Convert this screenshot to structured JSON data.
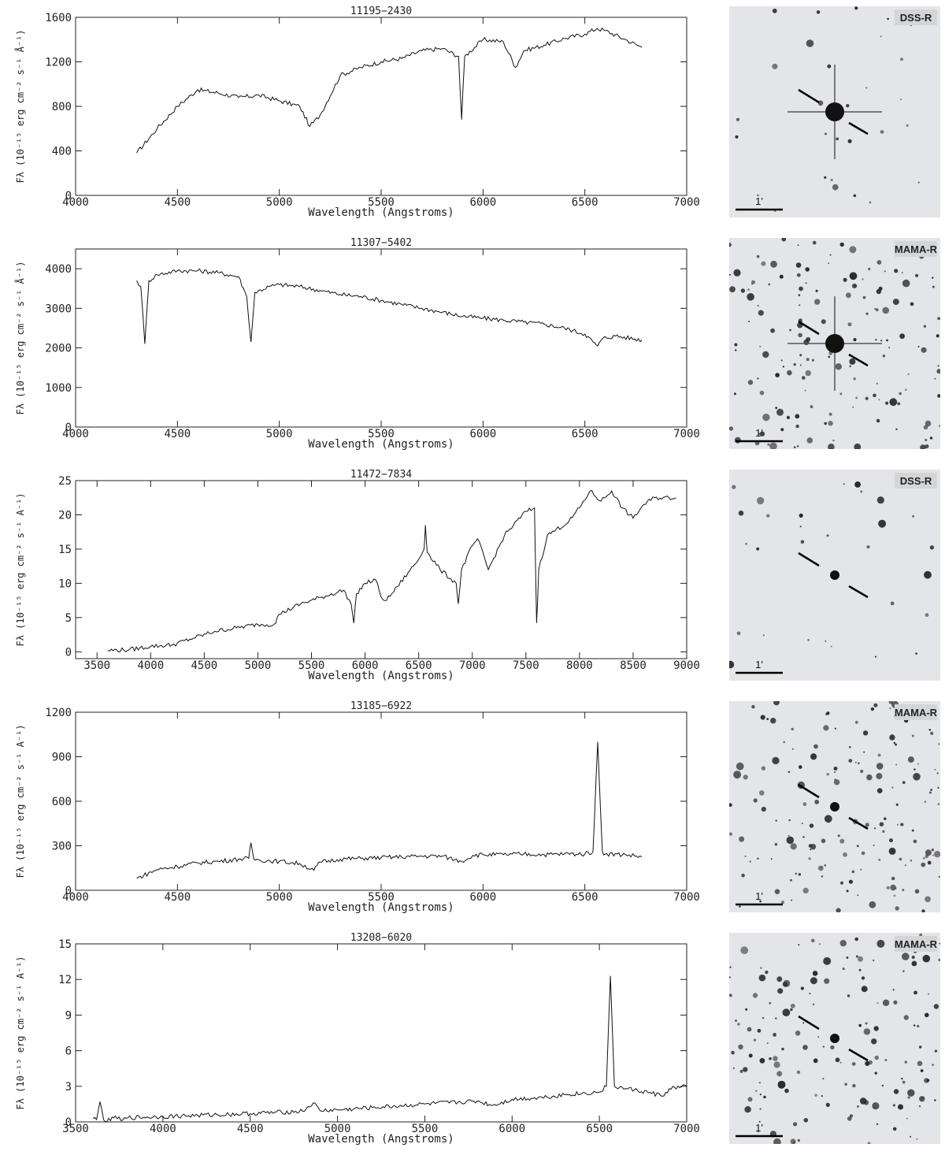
{
  "chart_data": [
    {
      "type": "line",
      "title": "11195−2430",
      "xlabel": "Wavelength (Angstroms)",
      "ylabel": "Fλ (10⁻¹⁵ erg cm⁻² s⁻¹ Å⁻¹)",
      "xlim": [
        4000,
        7000
      ],
      "ylim": [
        0,
        1600
      ],
      "xticks": [
        4000,
        4500,
        5000,
        5500,
        6000,
        6500,
        7000
      ],
      "yticks": [
        0,
        400,
        800,
        1200,
        1600
      ],
      "series": [
        {
          "x": [
            4300,
            4400,
            4500,
            4600,
            4700,
            4800,
            4900,
            5000,
            5100,
            5150,
            5200,
            5300,
            5400,
            5500,
            5600,
            5700,
            5800,
            5880,
            5895,
            5910,
            6000,
            6100,
            6160,
            6200,
            6300,
            6400,
            6500,
            6560,
            6600,
            6700,
            6780
          ],
          "y": [
            380,
            600,
            800,
            950,
            920,
            880,
            900,
            850,
            800,
            620,
            720,
            1080,
            1150,
            1200,
            1230,
            1300,
            1320,
            1250,
            680,
            1250,
            1400,
            1380,
            1150,
            1300,
            1350,
            1410,
            1450,
            1500,
            1480,
            1400,
            1330
          ]
        }
      ],
      "finder": {
        "survey": "DSS-R",
        "scale_label": "1'"
      }
    },
    {
      "type": "line",
      "title": "11307−5402",
      "xlabel": "Wavelength (Angstroms)",
      "ylabel": "Fλ (10⁻¹⁵ erg cm⁻² s⁻¹ Å⁻¹)",
      "xlim": [
        4000,
        7000
      ],
      "ylim": [
        0,
        4500
      ],
      "xticks": [
        4000,
        4500,
        5000,
        5500,
        6000,
        6500,
        7000
      ],
      "yticks": [
        0,
        1000,
        2000,
        3000,
        4000
      ],
      "series": [
        {
          "x": [
            4300,
            4320,
            4340,
            4360,
            4400,
            4500,
            4600,
            4700,
            4800,
            4840,
            4861,
            4880,
            4950,
            5000,
            5100,
            5200,
            5300,
            5400,
            5500,
            5600,
            5700,
            5800,
            5900,
            6000,
            6100,
            6200,
            6300,
            6400,
            6500,
            6540,
            6563,
            6590,
            6650,
            6780
          ],
          "y": [
            3700,
            3550,
            2100,
            3700,
            3850,
            3950,
            3950,
            3900,
            3800,
            3300,
            2150,
            3400,
            3550,
            3600,
            3550,
            3450,
            3350,
            3300,
            3200,
            3100,
            3000,
            2900,
            2800,
            2750,
            2700,
            2650,
            2600,
            2500,
            2350,
            2150,
            2050,
            2250,
            2300,
            2200
          ]
        }
      ],
      "finder": {
        "survey": "MAMA-R",
        "scale_label": "1'"
      }
    },
    {
      "type": "line",
      "title": "11472−7834",
      "xlabel": "Wavelength (Angstroms)",
      "ylabel": "Fλ (10⁻¹⁵ erg cm⁻² s⁻¹ A⁻¹)",
      "xlim": [
        3300,
        9000
      ],
      "ylim": [
        -1,
        25
      ],
      "xticks": [
        3500,
        4000,
        4500,
        5000,
        5500,
        6000,
        6500,
        7000,
        7500,
        8000,
        8500,
        9000
      ],
      "yticks": [
        0,
        5,
        10,
        15,
        20,
        25
      ],
      "series": [
        {
          "x": [
            3600,
            3800,
            4000,
            4200,
            4400,
            4600,
            4800,
            5000,
            5150,
            5200,
            5400,
            5600,
            5800,
            5870,
            5895,
            5920,
            6000,
            6100,
            6150,
            6200,
            6300,
            6400,
            6500,
            6550,
            6563,
            6580,
            6700,
            6850,
            6870,
            6900,
            7000,
            7050,
            7150,
            7300,
            7500,
            7580,
            7600,
            7620,
            7700,
            7900,
            8000,
            8100,
            8200,
            8300,
            8400,
            8500,
            8600,
            8700,
            8900
          ],
          "y": [
            0.2,
            0.3,
            0.8,
            1.0,
            2.0,
            3.0,
            3.5,
            4.0,
            4.0,
            5.5,
            7.0,
            8.0,
            9.0,
            7.0,
            4.2,
            8.5,
            10.0,
            10.5,
            8.0,
            7.5,
            9.5,
            11.5,
            13.5,
            15.0,
            18.5,
            14.5,
            12.0,
            10.0,
            7.0,
            12.0,
            15.5,
            16.5,
            12.0,
            17.0,
            20.5,
            21.0,
            4.2,
            12.0,
            17.0,
            19.0,
            21.0,
            23.5,
            22.0,
            23.5,
            21.0,
            19.5,
            21.5,
            22.5,
            22.5
          ]
        }
      ],
      "finder": {
        "survey": "DSS-R",
        "scale_label": "1'"
      }
    },
    {
      "type": "line",
      "title": "13185−6922",
      "xlabel": "Wavelength (Angstroms)",
      "ylabel": "Fλ (10⁻¹⁵ erg cm⁻² s⁻¹ A⁻¹)",
      "xlim": [
        4000,
        7000
      ],
      "ylim": [
        0,
        1200
      ],
      "xticks": [
        4000,
        4500,
        5000,
        5500,
        6000,
        6500,
        7000
      ],
      "yticks": [
        0,
        300,
        600,
        900,
        1200
      ],
      "series": [
        {
          "x": [
            4300,
            4400,
            4500,
            4600,
            4700,
            4800,
            4850,
            4861,
            4875,
            4900,
            5000,
            5100,
            5170,
            5200,
            5300,
            5400,
            5500,
            5600,
            5700,
            5800,
            5895,
            5950,
            6000,
            6100,
            6200,
            6300,
            6400,
            6500,
            6540,
            6563,
            6586,
            6600,
            6700,
            6780
          ],
          "y": [
            80,
            140,
            160,
            185,
            195,
            210,
            215,
            320,
            210,
            205,
            195,
            180,
            135,
            190,
            210,
            215,
            220,
            225,
            230,
            230,
            195,
            235,
            240,
            240,
            245,
            240,
            245,
            245,
            260,
            1000,
            260,
            245,
            240,
            225
          ]
        }
      ],
      "finder": {
        "survey": "MAMA-R",
        "scale_label": "1'"
      }
    },
    {
      "type": "line",
      "title": "13208−6020",
      "xlabel": "Wavelength (Angstroms)",
      "ylabel": "Fλ (10⁻¹⁵ erg cm⁻² s⁻¹ A⁻¹)",
      "xlim": [
        3500,
        7000
      ],
      "ylim": [
        0,
        15
      ],
      "xticks": [
        3500,
        4000,
        4500,
        5000,
        5500,
        6000,
        6500,
        7000
      ],
      "yticks": [
        0,
        3,
        6,
        9,
        12,
        15
      ],
      "series": [
        {
          "x": [
            3600,
            3620,
            3640,
            3660,
            3700,
            3727,
            3760,
            3800,
            4000,
            4200,
            4500,
            4800,
            4861,
            4900,
            5000,
            5200,
            5500,
            5800,
            5890,
            6000,
            6200,
            6300,
            6500,
            6540,
            6563,
            6586,
            6650,
            6700,
            6870,
            6900,
            7000
          ],
          "y": [
            0.3,
            0.2,
            1.7,
            0.2,
            0.1,
            0.5,
            0.1,
            0.35,
            0.45,
            0.55,
            0.7,
            0.9,
            1.6,
            0.95,
            1.0,
            1.2,
            1.5,
            1.75,
            1.4,
            1.9,
            2.1,
            2.3,
            2.5,
            3.0,
            12.3,
            3.0,
            2.8,
            2.7,
            2.2,
            2.8,
            3.0
          ]
        }
      ],
      "finder": {
        "survey": "MAMA-R",
        "scale_label": "1'"
      }
    }
  ]
}
